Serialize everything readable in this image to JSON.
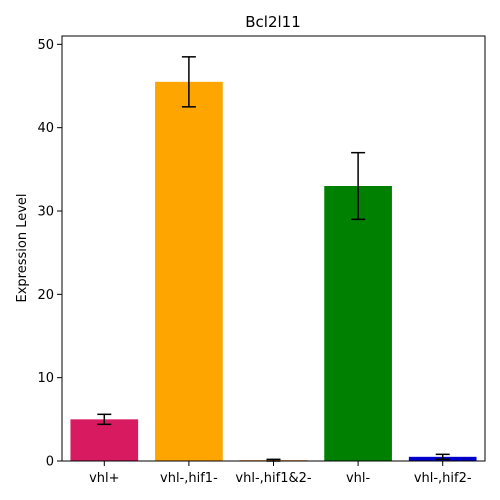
{
  "chart_data": {
    "type": "bar",
    "title": "Bcl2l11",
    "xlabel": "",
    "ylabel": "Expression Level",
    "categories": [
      "vhl+",
      "vhl-,hif1-",
      "vhl-,hif1&2-",
      "vhl-",
      "vhl-,hif2-"
    ],
    "values": [
      5.0,
      45.5,
      0.1,
      33.0,
      0.5
    ],
    "errors": [
      0.6,
      3.0,
      0.1,
      4.0,
      0.3
    ],
    "colors": [
      "#d81b60",
      "#ffa500",
      "#ff7f0e",
      "#008000",
      "#0000cd"
    ],
    "ylim": [
      0,
      51
    ],
    "yticks": [
      0,
      10,
      20,
      30,
      40,
      50
    ],
    "grid": false,
    "legend": "none"
  }
}
